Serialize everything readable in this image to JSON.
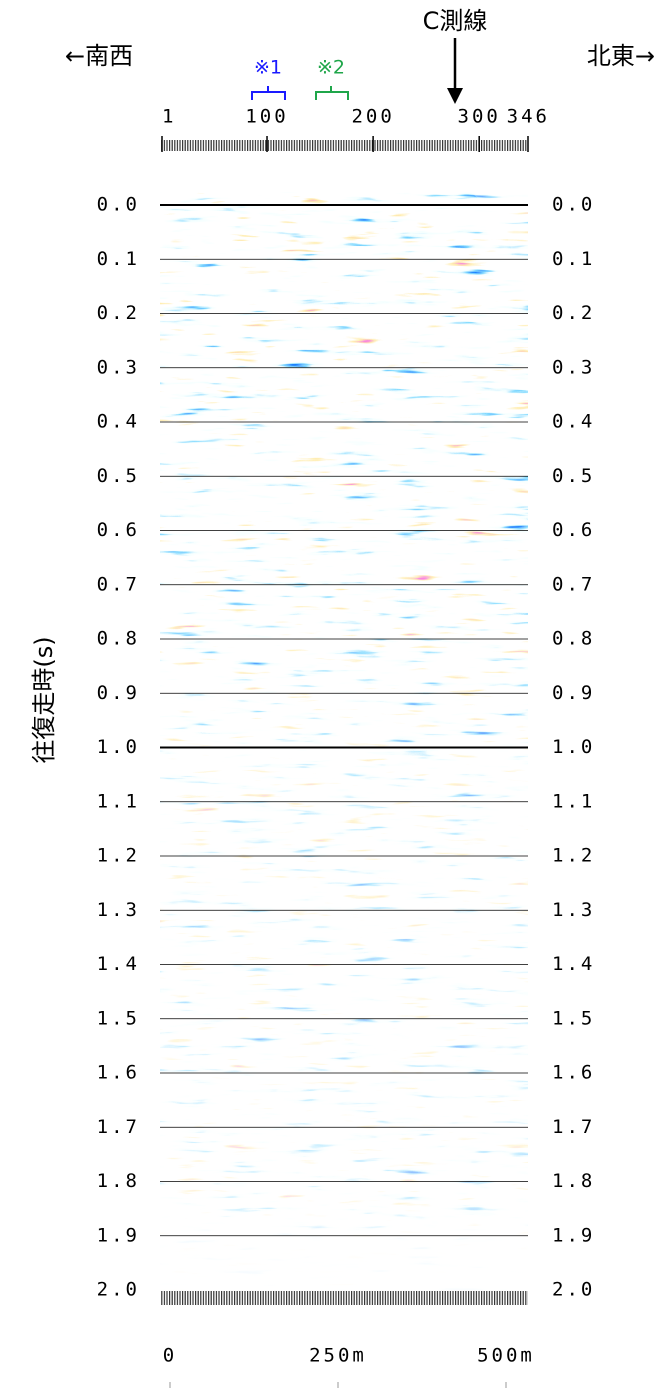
{
  "chart_data": {
    "type": "seismic-section",
    "title": "C測線",
    "direction_left": "←南西",
    "direction_right": "北東→",
    "annotations": [
      {
        "text": "※1",
        "color": "#1a1aff"
      },
      {
        "text": "※2",
        "color": "#1fa64a"
      }
    ],
    "ylabel": "往復走時(s)",
    "xlim": [
      1,
      346
    ],
    "xticks": [
      1,
      100,
      200,
      300,
      346
    ],
    "x2lim": [
      0,
      500
    ],
    "x2ticks": [
      0,
      {
        "value": 250,
        "label": "250m"
      },
      {
        "value": 500,
        "label": "500m"
      }
    ],
    "ylim": [
      0,
      2
    ],
    "y_inverted": true,
    "yticks": [
      {
        "value": 0,
        "label": "0.0"
      },
      0.1,
      0.2,
      0.3,
      0.4,
      0.5,
      0.6,
      0.7,
      0.8,
      0.9,
      {
        "value": 1,
        "label": "1.0"
      },
      1.1,
      1.2,
      1.3,
      1.4,
      1.5,
      1.6,
      1.7,
      1.8,
      1.9,
      {
        "value": 2,
        "label": "2.0"
      }
    ],
    "grid": true
  }
}
